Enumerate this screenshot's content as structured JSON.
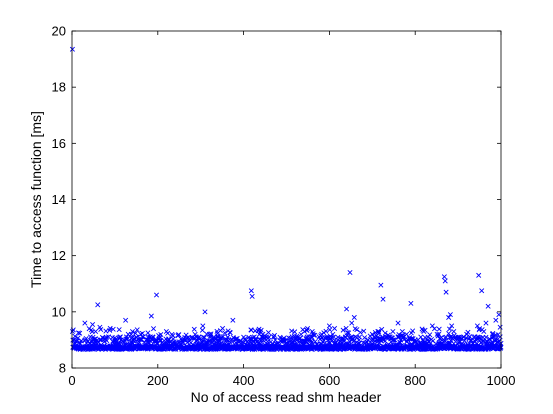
{
  "chart_data": {
    "type": "scatter",
    "xlabel": "No of access read shm header",
    "ylabel": "Time to access function [ms]",
    "xlim": [
      0,
      1000
    ],
    "ylim": [
      8,
      20
    ],
    "xticks": [
      "0",
      "200",
      "400",
      "600",
      "800",
      "1000"
    ],
    "yticks": [
      "8",
      "10",
      "12",
      "14",
      "16",
      "18",
      "20"
    ],
    "grid": false,
    "marker": "x",
    "series_color": "#0000ff",
    "baseline_ms": 8.72,
    "series": [
      {
        "points": [
          [
            1,
            19.35
          ],
          [
            1,
            9.3
          ],
          [
            5,
            9.0
          ],
          [
            30,
            9.6
          ],
          [
            40,
            9.4
          ],
          [
            48,
            9.55
          ],
          [
            55,
            9.3
          ],
          [
            60,
            10.25
          ],
          [
            65,
            9.45
          ],
          [
            80,
            9.1
          ],
          [
            100,
            8.95
          ],
          [
            110,
            9.05
          ],
          [
            125,
            9.7
          ],
          [
            150,
            9.1
          ],
          [
            160,
            9.2
          ],
          [
            175,
            9.0
          ],
          [
            185,
            9.85
          ],
          [
            190,
            9.4
          ],
          [
            197,
            10.6
          ],
          [
            205,
            9.1
          ],
          [
            220,
            9.3
          ],
          [
            235,
            9.15
          ],
          [
            250,
            8.9
          ],
          [
            265,
            9.0
          ],
          [
            290,
            9.1
          ],
          [
            305,
            9.5
          ],
          [
            310,
            10.0
          ],
          [
            320,
            9.2
          ],
          [
            330,
            9.1
          ],
          [
            345,
            8.95
          ],
          [
            360,
            9.0
          ],
          [
            375,
            9.7
          ],
          [
            385,
            9.05
          ],
          [
            400,
            9.1
          ],
          [
            418,
            10.75
          ],
          [
            420,
            10.55
          ],
          [
            430,
            9.0
          ],
          [
            445,
            9.2
          ],
          [
            470,
            9.1
          ],
          [
            500,
            9.0
          ],
          [
            530,
            9.05
          ],
          [
            560,
            9.3
          ],
          [
            580,
            9.15
          ],
          [
            600,
            9.5
          ],
          [
            620,
            9.0
          ],
          [
            640,
            10.1
          ],
          [
            645,
            9.25
          ],
          [
            648,
            11.4
          ],
          [
            652,
            9.6
          ],
          [
            658,
            9.8
          ],
          [
            660,
            9.4
          ],
          [
            670,
            9.1
          ],
          [
            690,
            9.0
          ],
          [
            700,
            9.2
          ],
          [
            715,
            9.3
          ],
          [
            720,
            10.95
          ],
          [
            725,
            10.45
          ],
          [
            735,
            9.1
          ],
          [
            750,
            9.0
          ],
          [
            760,
            9.6
          ],
          [
            770,
            9.3
          ],
          [
            780,
            9.2
          ],
          [
            790,
            10.3
          ],
          [
            800,
            9.0
          ],
          [
            820,
            9.3
          ],
          [
            830,
            9.1
          ],
          [
            840,
            9.5
          ],
          [
            855,
            9.2
          ],
          [
            868,
            11.25
          ],
          [
            870,
            11.1
          ],
          [
            872,
            10.7
          ],
          [
            878,
            9.8
          ],
          [
            882,
            9.9
          ],
          [
            885,
            9.5
          ],
          [
            890,
            9.3
          ],
          [
            900,
            9.1
          ],
          [
            920,
            9.2
          ],
          [
            930,
            9.0
          ],
          [
            945,
            9.5
          ],
          [
            948,
            11.3
          ],
          [
            950,
            9.4
          ],
          [
            955,
            10.75
          ],
          [
            960,
            9.3
          ],
          [
            965,
            9.6
          ],
          [
            970,
            10.2
          ],
          [
            980,
            9.2
          ],
          [
            988,
            9.7
          ],
          [
            995,
            9.9
          ],
          [
            998,
            9.45
          ]
        ]
      }
    ]
  }
}
